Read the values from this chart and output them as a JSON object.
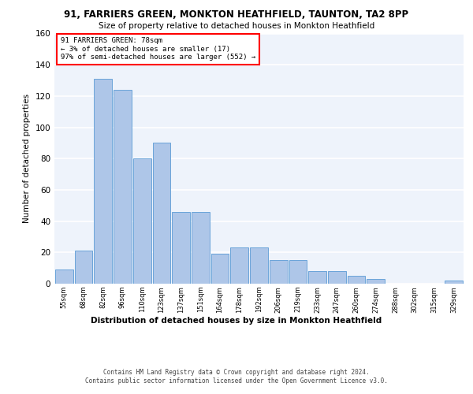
{
  "title_line1": "91, FARRIERS GREEN, MONKTON HEATHFIELD, TAUNTON, TA2 8PP",
  "title_line2": "Size of property relative to detached houses in Monkton Heathfield",
  "xlabel": "Distribution of detached houses by size in Monkton Heathfield",
  "ylabel": "Number of detached properties",
  "categories": [
    "55sqm",
    "68sqm",
    "82sqm",
    "96sqm",
    "110sqm",
    "123sqm",
    "137sqm",
    "151sqm",
    "164sqm",
    "178sqm",
    "192sqm",
    "206sqm",
    "219sqm",
    "233sqm",
    "247sqm",
    "260sqm",
    "274sqm",
    "288sqm",
    "302sqm",
    "315sqm",
    "329sqm"
  ],
  "values": [
    9,
    21,
    131,
    124,
    80,
    90,
    46,
    46,
    19,
    23,
    23,
    15,
    15,
    8,
    8,
    5,
    3,
    0,
    0,
    0,
    2
  ],
  "bar_color": "#aec6e8",
  "bar_edge_color": "#5b9bd5",
  "annotation_text": "91 FARRIERS GREEN: 78sqm\n← 3% of detached houses are smaller (17)\n97% of semi-detached houses are larger (552) →",
  "annotation_box_color": "white",
  "annotation_box_edge_color": "red",
  "ylim": [
    0,
    160
  ],
  "yticks": [
    0,
    20,
    40,
    60,
    80,
    100,
    120,
    140,
    160
  ],
  "bg_color": "#eef3fb",
  "grid_color": "white",
  "footer_line1": "Contains HM Land Registry data © Crown copyright and database right 2024.",
  "footer_line2": "Contains public sector information licensed under the Open Government Licence v3.0."
}
